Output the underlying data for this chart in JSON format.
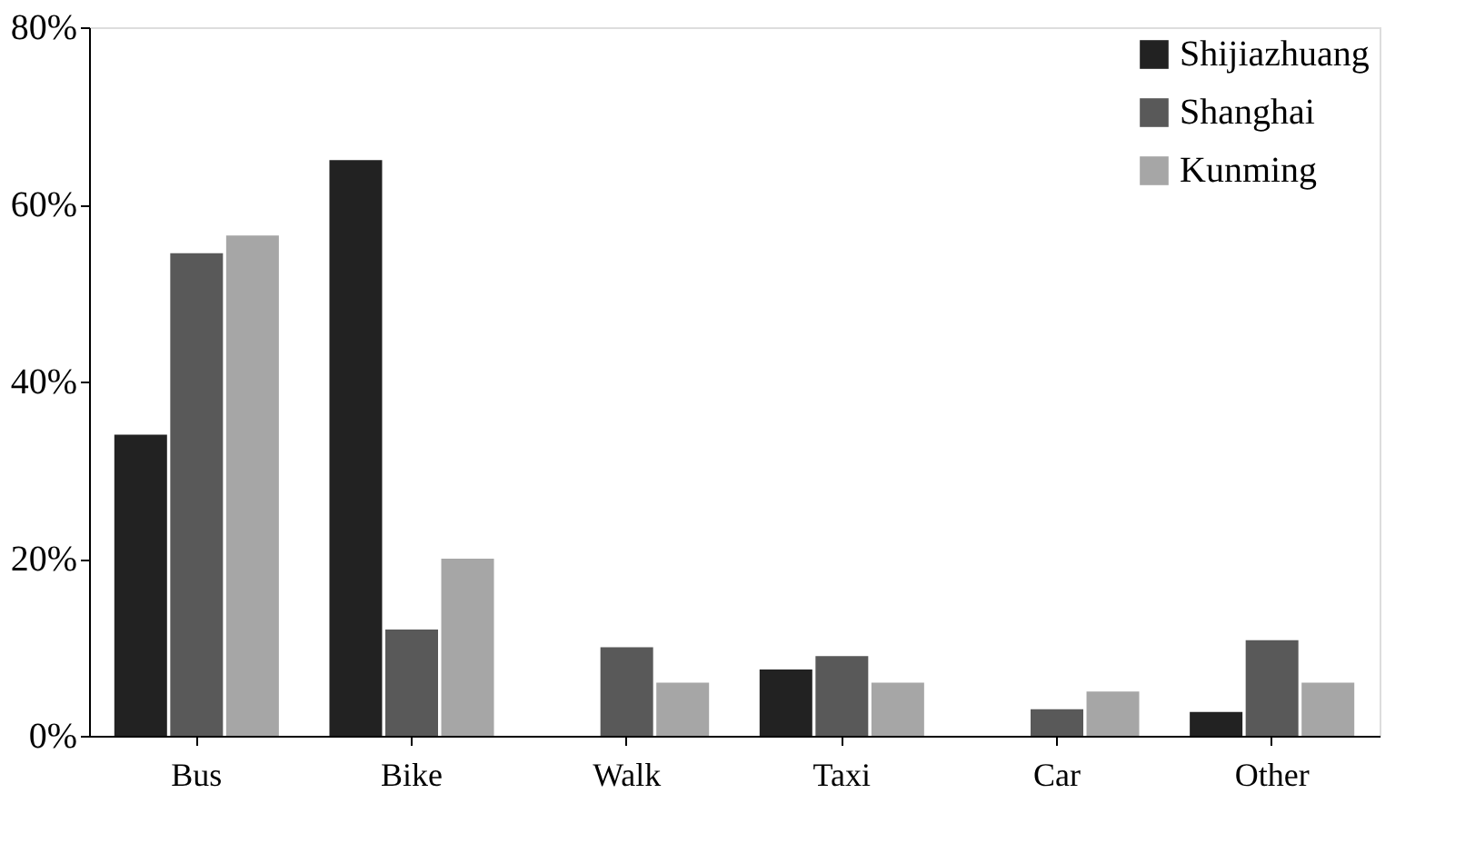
{
  "chart_data": {
    "type": "bar",
    "categories": [
      "Bus",
      "Bike",
      "Walk",
      "Taxi",
      "Car",
      "Other"
    ],
    "series": [
      {
        "name": "Shijiazhuang",
        "color": "#222222",
        "values": [
          34,
          65,
          0,
          7.5,
          0,
          2.7
        ]
      },
      {
        "name": "Shanghai",
        "color": "#595959",
        "values": [
          54.5,
          12,
          10,
          9,
          3,
          10.8
        ]
      },
      {
        "name": "Kunming",
        "color": "#a6a6a6",
        "values": [
          56.5,
          20,
          6,
          6,
          5,
          6
        ]
      }
    ],
    "ylim": [
      0,
      80
    ],
    "yticks": [
      {
        "value": 0,
        "label": "0%"
      },
      {
        "value": 20,
        "label": "20%"
      },
      {
        "value": 40,
        "label": "40%"
      },
      {
        "value": 60,
        "label": "60%"
      },
      {
        "value": 80,
        "label": "80%"
      }
    ],
    "grid": false,
    "legend": "top right"
  }
}
